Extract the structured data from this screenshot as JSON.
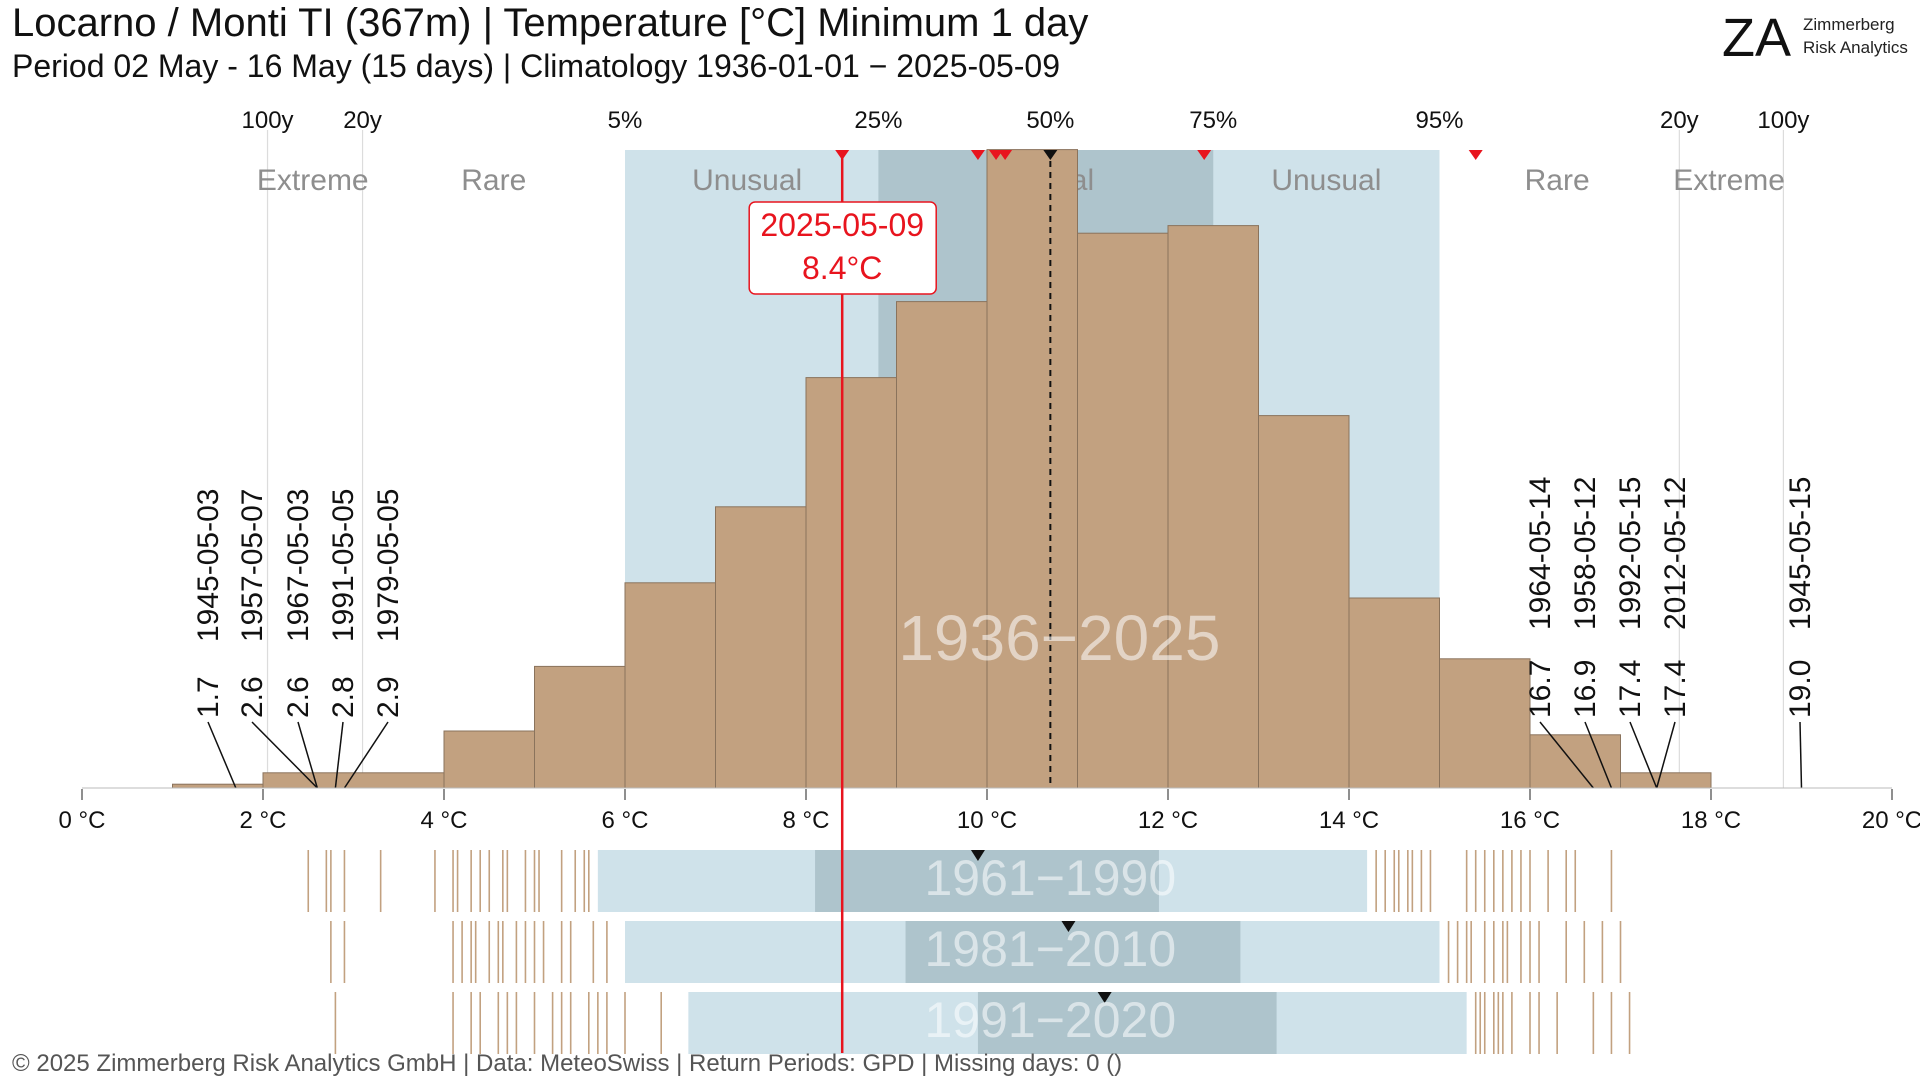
{
  "title": "Locarno / Monti  TI (367m) | Temperature [°C] Minimum 1 day",
  "subtitle": "Period 02 May - 16 May (15 days) | Climatology 1936-01-01 − 2025-05-09",
  "logo": {
    "mark": "ZA",
    "line1": "Zimmerberg",
    "line2": "Risk Analytics"
  },
  "footer": "©  2025 Zimmerberg Risk Analytics GmbH | Data: MeteoSwiss | Return Periods: GPD | Missing days: 0 ()",
  "colors": {
    "hist": "#c2a180",
    "outer": "#cfe2ea",
    "inner": "#aec4cc",
    "current": "#e8141e",
    "stripe": "#c2a180"
  },
  "chart_data": {
    "type": "bar",
    "x_unit": "°C",
    "xlim": [
      0,
      20
    ],
    "x_ticks": [
      0,
      2,
      4,
      6,
      8,
      10,
      12,
      14,
      16,
      18,
      20
    ],
    "x_tick_labels": [
      "0 °C",
      "2 °C",
      "4 °C",
      "6 °C",
      "8 °C",
      "10 °C",
      "12 °C",
      "14 °C",
      "16 °C",
      "18 °C",
      "20 °C"
    ],
    "histogram_bins": [
      {
        "from": 1,
        "to": 2,
        "count": 0.5
      },
      {
        "from": 2,
        "to": 4,
        "count": 2
      },
      {
        "from": 4,
        "to": 5,
        "count": 7.5
      },
      {
        "from": 5,
        "to": 6,
        "count": 16
      },
      {
        "from": 6,
        "to": 7,
        "count": 27
      },
      {
        "from": 7,
        "to": 8,
        "count": 37
      },
      {
        "from": 8,
        "to": 9,
        "count": 54
      },
      {
        "from": 9,
        "to": 10,
        "count": 64
      },
      {
        "from": 10,
        "to": 11,
        "count": 84
      },
      {
        "from": 11,
        "to": 12,
        "count": 73
      },
      {
        "from": 12,
        "to": 13,
        "count": 74
      },
      {
        "from": 13,
        "to": 14,
        "count": 49
      },
      {
        "from": 14,
        "to": 15,
        "count": 25
      },
      {
        "from": 15,
        "to": 16,
        "count": 17
      },
      {
        "from": 16,
        "to": 17,
        "count": 7
      },
      {
        "from": 17,
        "to": 18,
        "count": 2
      }
    ],
    "ymax": 100,
    "period_label": "1936−2025",
    "percentiles": [
      {
        "label": "5%",
        "value": 6.0
      },
      {
        "label": "25%",
        "value": 8.8
      },
      {
        "label": "50%",
        "value": 10.7
      },
      {
        "label": "75%",
        "value": 12.5
      },
      {
        "label": "95%",
        "value": 15.0
      }
    ],
    "return_periods": [
      {
        "label": "100y",
        "value": 2.05
      },
      {
        "label": "20y",
        "value": 3.1
      },
      {
        "label": "20y",
        "value": 17.65
      },
      {
        "label": "100y",
        "value": 18.8
      }
    ],
    "zones": [
      {
        "label": "Extreme",
        "center": 2.55
      },
      {
        "label": "Rare",
        "center": 4.55
      },
      {
        "label": "Unusual",
        "center": 7.35
      },
      {
        "label": "Normal",
        "center": 10.65
      },
      {
        "label": "Unusual",
        "center": 13.75
      },
      {
        "label": "Rare",
        "center": 16.3
      },
      {
        "label": "Extreme",
        "center": 18.2
      }
    ],
    "median": 10.7,
    "recent_markers": [
      8.4,
      9.9,
      10.1,
      10.2,
      10.7,
      12.4,
      15.4
    ],
    "current": {
      "date": "2025-05-09",
      "label": "8.4°C",
      "value": 8.4
    },
    "low_extremes": [
      {
        "date": "1945-05-03",
        "value": 1.7,
        "label": "1.7"
      },
      {
        "date": "1957-05-07",
        "value": 2.6,
        "label": "2.6"
      },
      {
        "date": "1967-05-03",
        "value": 2.6,
        "label": "2.6"
      },
      {
        "date": "1991-05-05",
        "value": 2.8,
        "label": "2.8"
      },
      {
        "date": "1979-05-05",
        "value": 2.9,
        "label": "2.9"
      }
    ],
    "high_extremes": [
      {
        "date": "1964-05-14",
        "value": 16.7,
        "label": "16.7"
      },
      {
        "date": "1958-05-12",
        "value": 16.9,
        "label": "16.9"
      },
      {
        "date": "1992-05-15",
        "value": 17.4,
        "label": "17.4"
      },
      {
        "date": "2012-05-12",
        "value": 17.4,
        "label": "17.4"
      },
      {
        "date": "1945-05-15",
        "value": 19.0,
        "label": "19.0"
      }
    ],
    "climatology_periods": [
      {
        "label": "1961−1990",
        "p5": 5.7,
        "p25": 8.1,
        "p75": 11.9,
        "p95": 14.2,
        "median": 9.9,
        "stripes": [
          2.5,
          2.7,
          2.75,
          2.9,
          3.3,
          3.9,
          4.1,
          4.15,
          4.3,
          4.4,
          4.5,
          4.65,
          4.7,
          4.9,
          5.0,
          5.05,
          5.3,
          5.45,
          5.55,
          5.6,
          14.3,
          14.4,
          14.5,
          14.55,
          14.65,
          14.7,
          14.8,
          14.9,
          15.3,
          15.4,
          15.5,
          15.6,
          15.7,
          15.8,
          15.9,
          16.0,
          16.2,
          16.4,
          16.5,
          16.9
        ]
      },
      {
        "label": "1981−2010",
        "p5": 6.0,
        "p25": 9.1,
        "p75": 12.8,
        "p95": 15.0,
        "median": 10.9,
        "stripes": [
          2.75,
          2.9,
          4.1,
          4.2,
          4.3,
          4.35,
          4.5,
          4.6,
          4.65,
          4.8,
          4.9,
          5.0,
          5.1,
          5.3,
          5.4,
          5.65,
          5.8,
          15.1,
          15.2,
          15.3,
          15.35,
          15.5,
          15.6,
          15.7,
          15.75,
          15.9,
          16.0,
          16.1,
          16.4,
          16.6,
          16.8,
          17.0
        ]
      },
      {
        "label": "1991−2020",
        "p5": 6.7,
        "p25": 9.9,
        "p75": 13.2,
        "p95": 15.3,
        "median": 11.3,
        "stripes": [
          2.8,
          4.1,
          4.3,
          4.4,
          4.6,
          4.7,
          4.8,
          5.0,
          5.2,
          5.3,
          5.4,
          5.6,
          5.7,
          5.8,
          6.0,
          6.4,
          15.4,
          15.45,
          15.5,
          15.6,
          15.65,
          15.7,
          15.8,
          16.0,
          16.1,
          16.3,
          16.7,
          16.9,
          17.1
        ]
      }
    ]
  }
}
